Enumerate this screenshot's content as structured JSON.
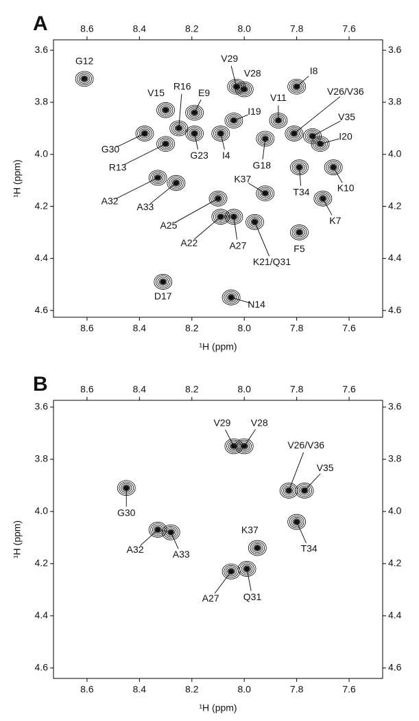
{
  "chart_data": [
    {
      "type": "scatter",
      "panel": "A",
      "x_label": "¹H (ppm)",
      "y_label": "¹H (ppm)",
      "xlim": [
        8.728,
        7.472
      ],
      "ylim": [
        3.56,
        4.626
      ],
      "xticks": [
        8.6,
        8.4,
        8.2,
        {
          "value": 8,
          "label": "8.0"
        },
        7.8,
        7.6
      ],
      "yticks": [
        3.6,
        3.8,
        {
          "value": 4,
          "label": "4.0"
        },
        4.2,
        4.4,
        4.6
      ],
      "labels": [
        "G12",
        "V15",
        "R16",
        "E9",
        "V29",
        "V28",
        "I8",
        "I19",
        "V11",
        "V26/V36",
        "V35",
        "I20",
        "G30",
        "R13",
        "I4",
        "G23",
        "G18",
        "K37",
        "T34",
        "K10",
        "A32",
        "A33",
        "K7",
        "A25",
        "A22",
        "A27",
        "K21/Q31",
        "F5",
        "D17",
        "N14"
      ],
      "x": [
        8.61,
        8.3,
        8.25,
        8.19,
        8.03,
        8.0,
        7.8,
        8.04,
        7.87,
        7.81,
        7.74,
        7.71,
        8.38,
        8.3,
        8.09,
        8.19,
        7.92,
        7.92,
        7.79,
        7.66,
        8.33,
        8.26,
        7.7,
        8.1,
        8.09,
        8.04,
        7.96,
        7.79,
        8.31,
        8.05
      ],
      "values": [
        3.71,
        3.83,
        3.9,
        3.84,
        3.74,
        3.75,
        3.74,
        3.87,
        3.87,
        3.92,
        3.93,
        3.96,
        3.92,
        3.96,
        3.92,
        3.92,
        3.94,
        4.15,
        4.05,
        4.05,
        4.09,
        4.11,
        4.17,
        4.17,
        4.24,
        4.24,
        4.26,
        4.3,
        4.49,
        4.55
      ]
    },
    {
      "type": "scatter",
      "panel": "B",
      "x_label": "¹H (ppm)",
      "y_label": "¹H (ppm)",
      "xlim": [
        8.728,
        7.472
      ],
      "ylim": [
        3.574,
        4.64
      ],
      "xticks": [
        8.6,
        8.4,
        8.2,
        {
          "value": 8,
          "label": "8.0"
        },
        7.8,
        7.6
      ],
      "yticks": [
        3.6,
        3.8,
        {
          "value": 4,
          "label": "4.0"
        },
        4.2,
        4.4,
        4.6
      ],
      "labels": [
        "V29",
        "V28",
        "V26/V36",
        "V35",
        "G30",
        "A32",
        "A33",
        "K37",
        "T34",
        "A27",
        "Q31"
      ],
      "x": [
        8.04,
        8.0,
        7.83,
        7.77,
        8.45,
        8.33,
        8.28,
        7.95,
        7.8,
        8.05,
        7.99
      ],
      "values": [
        3.75,
        3.75,
        3.92,
        3.92,
        3.91,
        4.07,
        4.08,
        4.14,
        4.04,
        4.23,
        4.22
      ]
    }
  ]
}
